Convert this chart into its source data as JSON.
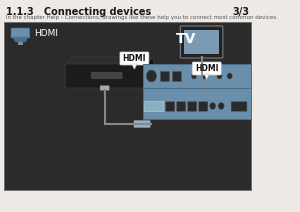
{
  "title": "1.1.3   Connecting devices",
  "page_num": "3/3",
  "subtitle": "In the chapter Help › Connections, drawings like these help you to connect most common devices.",
  "fig_bg": "#ede9e4",
  "panel_bg": "#2b2b2b",
  "panel_border": "#666666",
  "hdmi_plug_color": "#6a8faf",
  "hdmi_plug_dark": "#4a6f8f",
  "tv_screen_border": "#888888",
  "tv_screen_inner": "#7a9ab5",
  "tv_stand_color": "#888888",
  "box_front": "#1c1c1c",
  "box_top": "#2e2e2e",
  "box_right": "#111111",
  "box_slot": "#555555",
  "av_body": "#6a8faa",
  "av_border": "#4a6f8a",
  "av_divider": "#4a6f8a",
  "cable_color": "#888888",
  "callout_bg": "white",
  "callout_border": "#cccccc",
  "port_dark": "#333333",
  "port_med": "#555555"
}
